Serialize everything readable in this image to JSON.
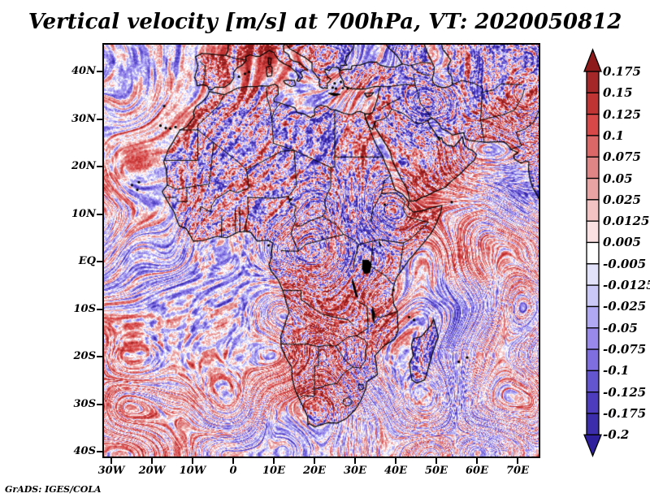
{
  "title": "Vertical velocity [m/s] at 700hPa, VT: 2020050812",
  "credit": "GrADS: IGES/COLA",
  "axes": {
    "x_tick_labels": [
      "30W",
      "20W",
      "10W",
      "0",
      "10E",
      "20E",
      "30E",
      "40E",
      "50E",
      "60E",
      "70E"
    ],
    "y_tick_labels": [
      "40N",
      "30N",
      "20N",
      "10N",
      "EQ",
      "10S",
      "20S",
      "30S",
      "40S"
    ]
  },
  "colorbar": {
    "tick_labels": [
      "0.175",
      "0.15",
      "0.125",
      "0.1",
      "0.075",
      "0.05",
      "0.025",
      "0.0125",
      "0.005",
      "-0.005",
      "-0.0125",
      "-0.025",
      "-0.05",
      "-0.075",
      "-0.1",
      "-0.125",
      "-0.175",
      "-0.2"
    ],
    "colors_top_to_bottom": [
      "#8e1b1b",
      "#a62727",
      "#c13434",
      "#d84848",
      "#dc6767",
      "#e08585",
      "#eaa3a3",
      "#f3c2c2",
      "#fae0e0",
      "#ffffff",
      "#e2e2fb",
      "#cac8f7",
      "#b0a8f2",
      "#9889eb",
      "#7f6ee0",
      "#6354d0",
      "#4d3dbe",
      "#3b2dac",
      "#2e209c"
    ]
  },
  "chart_data": {
    "type": "heatmap",
    "title": "Vertical velocity [m/s] at 700hPa, VT: 2020050812",
    "variable": "Vertical velocity",
    "units": "m/s",
    "pressure_level": "700hPa",
    "valid_time": "2020050812",
    "x_axis": {
      "label": "longitude",
      "tick_labels": [
        "30W",
        "20W",
        "10W",
        "0",
        "10E",
        "20E",
        "30E",
        "40E",
        "50E",
        "60E",
        "70E"
      ],
      "approx_range_deg": [
        -32,
        75
      ]
    },
    "y_axis": {
      "label": "latitude",
      "tick_labels": [
        "40N",
        "30N",
        "20N",
        "10N",
        "EQ",
        "10S",
        "20S",
        "30S",
        "40S"
      ],
      "approx_range_deg": [
        -41,
        46
      ]
    },
    "colorbar_levels": [
      0.175,
      0.15,
      0.125,
      0.1,
      0.075,
      0.05,
      0.025,
      0.0125,
      0.005,
      -0.005,
      -0.0125,
      -0.025,
      -0.05,
      -0.075,
      -0.1,
      -0.125,
      -0.175,
      -0.2
    ],
    "palette_top_to_bottom": [
      "#8e1b1b",
      "#a62727",
      "#c13434",
      "#d84848",
      "#dc6767",
      "#e08585",
      "#eaa3a3",
      "#f3c2c2",
      "#fae0e0",
      "#ffffff",
      "#e2e2fb",
      "#cac8f7",
      "#b0a8f2",
      "#9889eb",
      "#7f6ee0",
      "#6354d0",
      "#4d3dbe",
      "#3b2dac",
      "#2e209c"
    ],
    "legend_position": "right",
    "grid": false,
    "notes": "High-frequency grid-scale field of positive (red) and negative (blue) vertical velocity over Africa, the Atlantic, Indian Ocean, Mediterranean and Middle East; black coastlines, country borders and filled lakes drawn on top. Individual grid-point values are not resolvable from the image."
  }
}
